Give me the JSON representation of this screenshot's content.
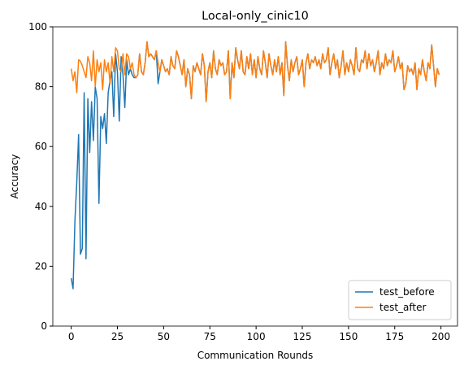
{
  "chart_data": {
    "type": "line",
    "title": "Local-only_cinic10",
    "xlabel": "Communication Rounds",
    "ylabel": "Accuracy",
    "x": [
      0,
      1,
      2,
      3,
      4,
      5,
      6,
      7,
      8,
      9,
      10,
      11,
      12,
      13,
      14,
      15,
      16,
      17,
      18,
      19,
      20,
      21,
      22,
      23,
      24,
      25,
      26,
      27,
      28,
      29,
      30,
      31,
      32,
      33,
      34,
      35,
      36,
      37,
      38,
      39,
      40,
      41,
      42,
      43,
      44,
      45,
      46,
      47,
      48,
      49,
      50,
      51,
      52,
      53,
      54,
      55,
      56,
      57,
      58,
      59,
      60,
      61,
      62,
      63,
      64,
      65,
      66,
      67,
      68,
      69,
      70,
      71,
      72,
      73,
      74,
      75,
      76,
      77,
      78,
      79,
      80,
      81,
      82,
      83,
      84,
      85,
      86,
      87,
      88,
      89,
      90,
      91,
      92,
      93,
      94,
      95,
      96,
      97,
      98,
      99,
      100,
      101,
      102,
      103,
      104,
      105,
      106,
      107,
      108,
      109,
      110,
      111,
      112,
      113,
      114,
      115,
      116,
      117,
      118,
      119,
      120,
      121,
      122,
      123,
      124,
      125,
      126,
      127,
      128,
      129,
      130,
      131,
      132,
      133,
      134,
      135,
      136,
      137,
      138,
      139,
      140,
      141,
      142,
      143,
      144,
      145,
      146,
      147,
      148,
      149,
      150,
      151,
      152,
      153,
      154,
      155,
      156,
      157,
      158,
      159,
      160,
      161,
      162,
      163,
      164,
      165,
      166,
      167,
      168,
      169,
      170,
      171,
      172,
      173,
      174,
      175,
      176,
      177,
      178,
      179,
      180,
      181,
      182,
      183,
      184,
      185,
      186,
      187,
      188,
      189,
      190,
      191,
      192,
      193,
      194,
      195,
      196,
      197,
      198,
      199
    ],
    "series": [
      {
        "name": "test_before",
        "color": "#1f77b4",
        "values": [
          16,
          12.5,
          35,
          48,
          64,
          24,
          26,
          78,
          22.5,
          76,
          58,
          75,
          62,
          80,
          76,
          41,
          70,
          66,
          71,
          61,
          78,
          82,
          85,
          70,
          91,
          85,
          68.5,
          90,
          84,
          73,
          89,
          84,
          86,
          84,
          83,
          83,
          84,
          91,
          85,
          84,
          88,
          95,
          90,
          91,
          90,
          89,
          92,
          81,
          85,
          89,
          87,
          85,
          86,
          84,
          90,
          87,
          86,
          92,
          90,
          87,
          84,
          89,
          80,
          86,
          84,
          76,
          87,
          85,
          88,
          86,
          84,
          91,
          87,
          75,
          85,
          88,
          83,
          92,
          86,
          84,
          89,
          87,
          88,
          84,
          85,
          92,
          76,
          88,
          83,
          93,
          89,
          86,
          92,
          85,
          84,
          90,
          86,
          91,
          84,
          89,
          83,
          90,
          86,
          84,
          92,
          88,
          83,
          91,
          87,
          84,
          89,
          85,
          90,
          84,
          88,
          77,
          95,
          87,
          82,
          89,
          85,
          88,
          90,
          84,
          86,
          89,
          80,
          88,
          91,
          86,
          89,
          88,
          90,
          87,
          89,
          86,
          91,
          88,
          89,
          93,
          84,
          88,
          91,
          86,
          89,
          83,
          87,
          92,
          84,
          88,
          85,
          89,
          87,
          84,
          93,
          86,
          85,
          89,
          88,
          92,
          86,
          91,
          87,
          89,
          85,
          88,
          92,
          84,
          88,
          86,
          91,
          87,
          89,
          88,
          92,
          85,
          87,
          90,
          86,
          88,
          79,
          81,
          87,
          85,
          86,
          84,
          88,
          79,
          86,
          84,
          89,
          85,
          82,
          88,
          86,
          94,
          87,
          80,
          86,
          84
        ]
      },
      {
        "name": "test_after",
        "color": "#ff7f0e",
        "values": [
          86,
          82,
          85,
          78,
          89,
          88.5,
          87,
          85,
          83,
          90,
          88,
          82,
          92,
          80,
          89,
          85,
          88,
          79,
          89,
          85,
          88,
          81,
          90,
          85,
          93,
          92,
          86,
          85,
          91,
          84,
          91,
          90,
          86,
          88,
          84,
          83,
          84,
          91,
          85,
          84,
          88,
          95,
          90,
          91,
          90,
          89,
          92,
          88,
          85,
          89,
          87,
          85,
          86,
          84,
          90,
          87,
          86,
          92,
          90,
          87,
          84,
          89,
          80,
          86,
          84,
          76,
          87,
          85,
          88,
          86,
          84,
          91,
          87,
          75,
          85,
          88,
          83,
          92,
          86,
          84,
          89,
          87,
          88,
          84,
          85,
          92,
          76,
          88,
          83,
          93,
          89,
          86,
          92,
          85,
          84,
          90,
          86,
          91,
          84,
          89,
          83,
          90,
          86,
          84,
          92,
          88,
          83,
          91,
          87,
          84,
          89,
          85,
          90,
          84,
          88,
          77,
          95,
          87,
          82,
          89,
          85,
          88,
          90,
          84,
          86,
          89,
          80,
          88,
          91,
          86,
          89,
          88,
          90,
          87,
          89,
          86,
          91,
          88,
          89,
          93,
          84,
          88,
          91,
          86,
          89,
          83,
          87,
          92,
          84,
          88,
          85,
          89,
          87,
          84,
          93,
          86,
          85,
          89,
          88,
          92,
          86,
          91,
          87,
          89,
          85,
          88,
          92,
          84,
          88,
          86,
          91,
          87,
          89,
          88,
          92,
          85,
          87,
          90,
          86,
          88,
          79,
          81,
          87,
          85,
          86,
          84,
          88,
          79,
          86,
          84,
          89,
          85,
          82,
          88,
          86,
          94,
          87,
          80,
          86,
          84
        ]
      }
    ],
    "xlim": [
      -9.95,
      208.95
    ],
    "xticks": [
      0,
      25,
      50,
      75,
      100,
      125,
      150,
      175,
      200
    ],
    "ylim": [
      0,
      100
    ],
    "yticks": [
      0,
      20,
      40,
      60,
      80,
      100
    ],
    "legend": "lower right"
  }
}
